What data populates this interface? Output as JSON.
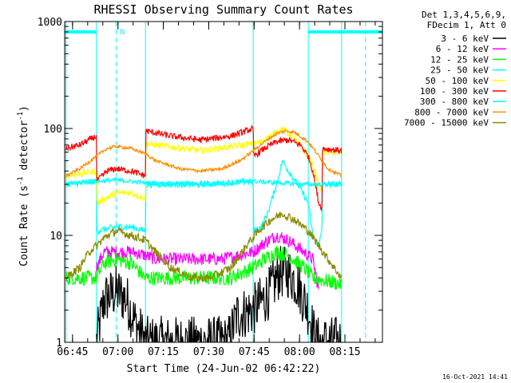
{
  "chart_data": {
    "type": "line",
    "title": "RHESSI Observing Summary Count Rates",
    "xlabel": "Start Time (24-Jun-02 06:42:22)",
    "ylabel_main": "Count Rate (s",
    "ylabel_sup1": "-1",
    "ylabel_mid": " detector",
    "ylabel_sup2": "-1",
    "ylabel_end": ")",
    "timestamp": "16-Oct-2021 14:41",
    "x_unit": "minutes after 06:42:22",
    "xlim": [
      0,
      105
    ],
    "yscale": "log",
    "ylim": [
      1,
      1000
    ],
    "x_ticks": [
      {
        "label": "06:45",
        "value": 2.6
      },
      {
        "label": "07:00",
        "value": 17.6
      },
      {
        "label": "07:15",
        "value": 32.6
      },
      {
        "label": "07:30",
        "value": 47.6
      },
      {
        "label": "07:45",
        "value": 62.6
      },
      {
        "label": "08:00",
        "value": 77.6
      },
      {
        "label": "08:15",
        "value": 92.6
      }
    ],
    "y_ticks": [
      {
        "label": "1",
        "value": 1
      },
      {
        "label": "10",
        "value": 10
      },
      {
        "label": "100",
        "value": 100
      },
      {
        "label": "1000",
        "value": 1000
      }
    ],
    "legend_header": [
      "Det 1,3,4,5,6,9,",
      "FDecim 1, Att 0"
    ],
    "legend_position": "outside-right",
    "night_intervals": [
      [
        -1,
        10.5
      ],
      [
        80.5,
        106
      ]
    ],
    "night_marker_y": 800,
    "flag_n": {
      "label": "N",
      "x": 17.2,
      "y": 1000
    },
    "boundary_lines": {
      "solid": [
        0.4,
        10.5,
        26.7,
        62.3,
        80.5,
        91.5
      ],
      "dashed": [
        17.0,
        99.4
      ]
    },
    "series": [
      {
        "name": "3 - 6 keV",
        "color": "#000000",
        "values": [
          [
            10.5,
            1
          ],
          [
            13,
            2.5
          ],
          [
            17,
            3
          ],
          [
            20.5,
            2.5
          ],
          [
            23,
            1.6
          ],
          [
            26.7,
            1
          ],
          [
            54,
            1
          ],
          [
            57,
            1.8
          ],
          [
            62.3,
            2
          ],
          [
            65,
            2.4
          ],
          [
            68,
            3
          ],
          [
            71,
            4.5
          ],
          [
            74,
            4.5
          ],
          [
            77,
            3.5
          ],
          [
            80.5,
            2
          ],
          [
            83,
            1
          ],
          [
            91.5,
            1
          ]
        ]
      },
      {
        "name": "6 - 12 keV",
        "color": "#ff00ff",
        "values": [
          [
            10.5,
            5
          ],
          [
            13,
            7
          ],
          [
            17,
            7
          ],
          [
            22,
            7
          ],
          [
            26.7,
            6.5
          ],
          [
            30,
            6
          ],
          [
            45,
            6
          ],
          [
            52,
            6
          ],
          [
            62.3,
            7
          ],
          [
            66,
            8.5
          ],
          [
            70,
            10
          ],
          [
            74,
            9
          ],
          [
            79,
            7
          ],
          [
            82,
            6
          ],
          [
            84,
            3
          ]
        ]
      },
      {
        "name": "12 - 25 keV",
        "color": "#00ff00",
        "values": [
          [
            0.4,
            4
          ],
          [
            5,
            4
          ],
          [
            10.5,
            4
          ],
          [
            13,
            5.5
          ],
          [
            17,
            6
          ],
          [
            22,
            5.5
          ],
          [
            26.7,
            4
          ],
          [
            30,
            4
          ],
          [
            45,
            4
          ],
          [
            55,
            4
          ],
          [
            62.3,
            5
          ],
          [
            66,
            6
          ],
          [
            70,
            7
          ],
          [
            74,
            6.5
          ],
          [
            79,
            5
          ],
          [
            82,
            4
          ],
          [
            91.5,
            3.5
          ]
        ]
      },
      {
        "name": "25 - 50 keV",
        "color": "#00ffff",
        "values": [
          [
            0.4,
            30
          ],
          [
            10.5,
            32
          ],
          [
            10.6,
            11
          ],
          [
            17,
            12
          ],
          [
            22,
            12
          ],
          [
            26.7,
            11
          ],
          [
            26.8,
            30
          ],
          [
            45,
            30
          ],
          [
            62.3,
            32
          ],
          [
            62.4,
            11
          ],
          [
            65,
            12
          ],
          [
            67,
            16
          ],
          [
            70,
            30
          ],
          [
            72,
            50
          ],
          [
            74,
            40
          ],
          [
            77,
            30
          ],
          [
            80.5,
            20
          ],
          [
            82,
            10
          ],
          [
            84,
            8
          ],
          [
            85,
            12
          ],
          [
            85.1,
            30
          ],
          [
            91.5,
            30
          ]
        ]
      },
      {
        "name": "50 - 100 keV",
        "color": "#ffff00",
        "values": [
          [
            0.4,
            36
          ],
          [
            10.5,
            40
          ],
          [
            10.6,
            20
          ],
          [
            17,
            25
          ],
          [
            22,
            25
          ],
          [
            26.7,
            22
          ],
          [
            26.8,
            72
          ],
          [
            45,
            62
          ],
          [
            62.3,
            72
          ],
          [
            65,
            75
          ],
          [
            68,
            85
          ],
          [
            72,
            100
          ],
          [
            76,
            80
          ],
          [
            80.5,
            55
          ],
          [
            82,
            45
          ],
          [
            84,
            30
          ],
          [
            85,
            25
          ],
          [
            85.1,
            60
          ],
          [
            91.5,
            60
          ]
        ]
      },
      {
        "name": "100 - 300 keV",
        "color": "#ff0000",
        "values": [
          [
            0.4,
            65
          ],
          [
            5,
            70
          ],
          [
            10.5,
            85
          ],
          [
            10.6,
            32
          ],
          [
            14,
            40
          ],
          [
            17,
            42
          ],
          [
            22,
            40
          ],
          [
            26.7,
            36
          ],
          [
            26.8,
            95
          ],
          [
            35,
            85
          ],
          [
            45,
            78
          ],
          [
            55,
            85
          ],
          [
            62.3,
            100
          ],
          [
            62.4,
            55
          ],
          [
            66,
            65
          ],
          [
            70,
            75
          ],
          [
            74,
            78
          ],
          [
            78,
            70
          ],
          [
            80.5,
            55
          ],
          [
            82,
            40
          ],
          [
            84,
            20
          ],
          [
            85,
            18
          ],
          [
            85.1,
            65
          ],
          [
            91.5,
            62
          ]
        ]
      },
      {
        "name": "300 - 800 keV",
        "color": "#00ffff",
        "values": [
          [
            0.4,
            30
          ],
          [
            10.5,
            32
          ],
          [
            17,
            33
          ],
          [
            26.7,
            31
          ],
          [
            45,
            30
          ],
          [
            62.3,
            32
          ],
          [
            80.5,
            30
          ],
          [
            91.5,
            30
          ]
        ]
      },
      {
        "name": "800 - 7000 keV",
        "color": "#ff8c00",
        "values": [
          [
            0.4,
            36
          ],
          [
            5,
            42
          ],
          [
            10.5,
            55
          ],
          [
            14,
            65
          ],
          [
            17,
            68
          ],
          [
            22,
            65
          ],
          [
            26.7,
            58
          ],
          [
            30,
            50
          ],
          [
            38,
            42
          ],
          [
            45,
            40
          ],
          [
            52,
            42
          ],
          [
            58,
            50
          ],
          [
            62.3,
            62
          ],
          [
            66,
            75
          ],
          [
            70,
            90
          ],
          [
            73,
            95
          ],
          [
            76,
            92
          ],
          [
            80.5,
            75
          ],
          [
            84,
            55
          ],
          [
            87,
            42
          ],
          [
            91.5,
            36
          ]
        ]
      },
      {
        "name": "7000 - 15000 keV",
        "color": "#8b8b00",
        "values": [
          [
            0.4,
            4
          ],
          [
            5,
            5
          ],
          [
            8,
            7
          ],
          [
            10.5,
            8
          ],
          [
            14,
            10
          ],
          [
            17,
            11
          ],
          [
            22,
            10
          ],
          [
            26.7,
            9
          ],
          [
            30,
            7
          ],
          [
            35,
            5
          ],
          [
            42,
            4
          ],
          [
            48,
            4
          ],
          [
            55,
            5
          ],
          [
            60,
            8
          ],
          [
            64,
            11
          ],
          [
            68,
            14
          ],
          [
            72,
            16
          ],
          [
            76,
            14
          ],
          [
            80.5,
            11
          ],
          [
            84,
            8
          ],
          [
            87,
            6
          ],
          [
            91.5,
            4
          ]
        ]
      }
    ]
  }
}
